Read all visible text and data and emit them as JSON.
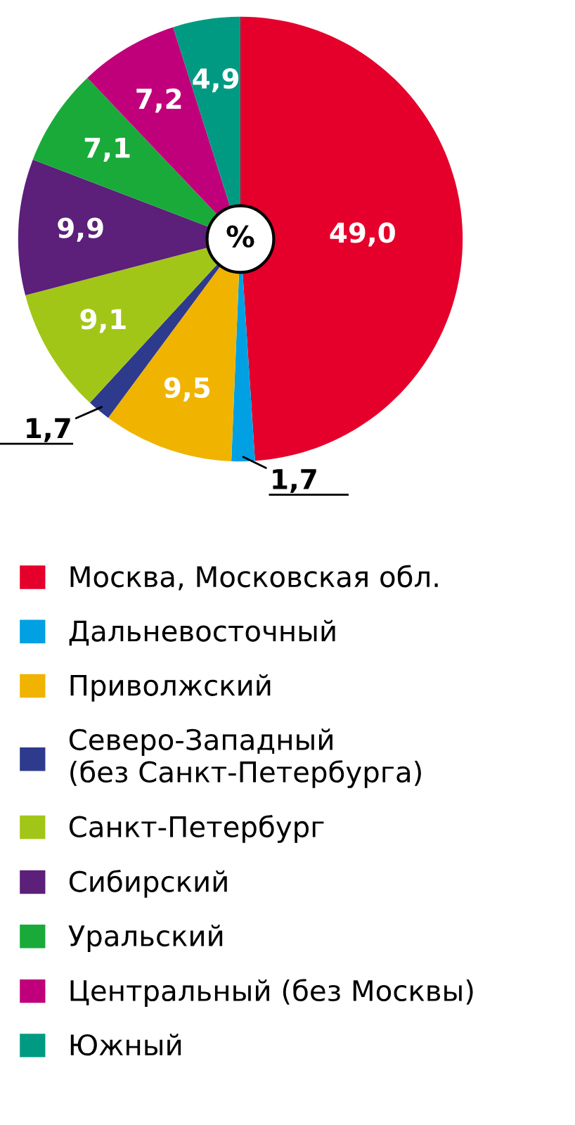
{
  "chart_data": {
    "type": "pie",
    "annotations": [
      "%"
    ],
    "legend": "bottom",
    "categories": [
      "Москва, Московская обл.",
      "Дальневосточный",
      "Приволжский",
      "Северо-Западный\n(без Санкт-Петербурга)",
      "Санкт-Петербург",
      "Сибирский",
      "Уральский",
      "Центральный (без Москвы)",
      "Южный"
    ],
    "values": [
      49.0,
      1.7,
      9.5,
      1.7,
      9.1,
      9.9,
      7.1,
      7.2,
      4.9
    ],
    "value_labels": [
      "49,0",
      "1,7",
      "9,5",
      "1,7",
      "9,1",
      "9,9",
      "7,1",
      "7,2",
      "4,9"
    ],
    "colors": [
      "#e4002b",
      "#00a0e3",
      "#f0b400",
      "#2e3a8c",
      "#a2c617",
      "#5c1f7a",
      "#1aaa3a",
      "#c0007a",
      "#009a82"
    ]
  }
}
